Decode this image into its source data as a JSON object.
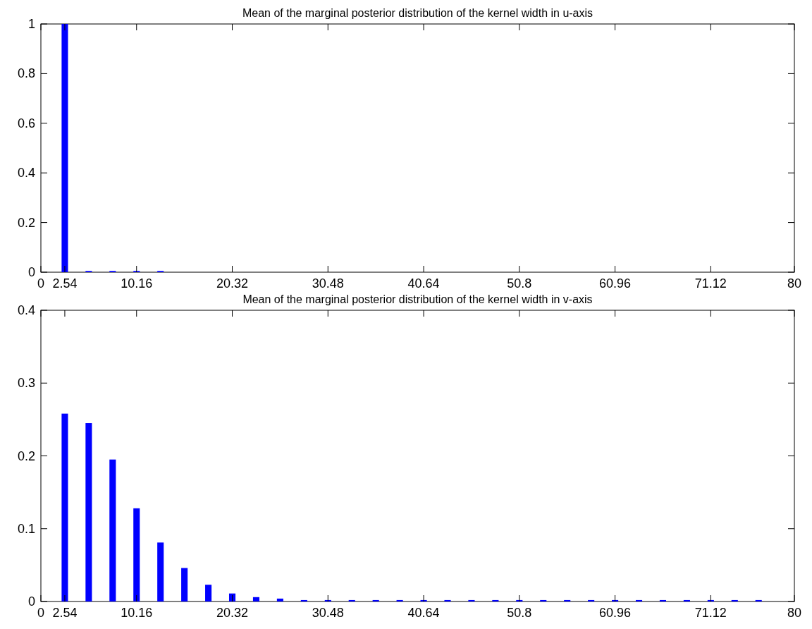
{
  "chart_data": [
    {
      "type": "bar",
      "title": "Mean of the marginal posterior distribution of the kernel width in u-axis",
      "x": [
        2.54,
        5.08,
        7.62,
        10.16,
        12.7
      ],
      "values": [
        1,
        0.005,
        0.005,
        0.005,
        0.005
      ],
      "color": "#0000ff",
      "xlim": [
        0,
        80
      ],
      "xticks": [
        0,
        2.54,
        10.16,
        20.32,
        30.48,
        40.64,
        50.8,
        60.96,
        71.12,
        80
      ],
      "ylim": [
        0,
        1
      ],
      "yticks": [
        0,
        0.2,
        0.4,
        0.6,
        0.8,
        1
      ],
      "grid": false
    },
    {
      "type": "bar",
      "title": "Mean of the marginal posterior distribution of the kernel width in v-axis",
      "x": [
        2.54,
        5.08,
        7.62,
        10.16,
        12.7,
        15.24,
        17.78,
        20.32,
        22.86,
        25.4,
        27.94,
        30.48,
        33.02,
        35.56,
        38.1,
        40.64,
        43.18,
        45.72,
        48.26,
        50.8,
        53.34,
        55.88,
        58.42,
        60.96,
        63.5,
        66.04,
        68.58,
        71.12,
        73.66,
        76.2
      ],
      "values": [
        0.258,
        0.245,
        0.195,
        0.128,
        0.081,
        0.046,
        0.023,
        0.011,
        0.006,
        0.004,
        0.002,
        0.002,
        0.002,
        0.002,
        0.002,
        0.002,
        0.002,
        0.002,
        0.002,
        0.002,
        0.002,
        0.002,
        0.002,
        0.002,
        0.002,
        0.002,
        0.002,
        0.002,
        0.002,
        0.002
      ],
      "color": "#0000ff",
      "xlim": [
        0,
        80
      ],
      "xticks": [
        0,
        2.54,
        10.16,
        20.32,
        30.48,
        40.64,
        50.8,
        60.96,
        71.12,
        80
      ],
      "ylim": [
        0,
        0.4
      ],
      "yticks": [
        0,
        0.1,
        0.2,
        0.3,
        0.4
      ],
      "grid": false
    }
  ]
}
